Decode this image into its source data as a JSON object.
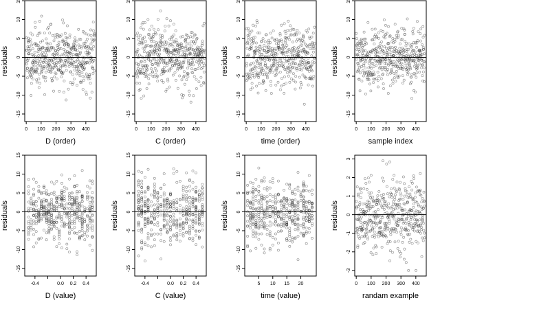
{
  "chart_data": [
    {
      "type": "scatter",
      "xlabel": "D (order)",
      "ylabel": "residuals",
      "xlim": [
        -10,
        470
      ],
      "ylim": [
        -17,
        15
      ],
      "xticks": [
        0,
        100,
        200,
        300,
        400
      ],
      "yticks": [
        -15,
        -10,
        -5,
        0,
        5,
        10,
        15
      ],
      "xtick_labels": [
        "0",
        "100",
        "200",
        "300",
        "400"
      ],
      "ytick_labels": [
        "-15",
        "-10",
        "-5",
        "0",
        "5",
        "10",
        "15"
      ],
      "reference_line": 0,
      "gen": {
        "kind": "index",
        "n": 460,
        "sd": 4.0,
        "seed": 11
      }
    },
    {
      "type": "scatter",
      "xlabel": "C (order)",
      "ylabel": "residuals",
      "xlim": [
        -10,
        470
      ],
      "ylim": [
        -17,
        15
      ],
      "xticks": [
        0,
        100,
        200,
        300,
        400
      ],
      "yticks": [
        -15,
        -10,
        -5,
        0,
        5,
        10,
        15
      ],
      "xtick_labels": [
        "0",
        "100",
        "200",
        "300",
        "400"
      ],
      "ytick_labels": [
        "-15",
        "-10",
        "-5",
        "0",
        "5",
        "10",
        "15"
      ],
      "reference_line": 0,
      "gen": {
        "kind": "index",
        "n": 460,
        "sd": 4.0,
        "seed": 23
      }
    },
    {
      "type": "scatter",
      "xlabel": "time (order)",
      "ylabel": "residuals",
      "xlim": [
        -10,
        470
      ],
      "ylim": [
        -17,
        15
      ],
      "xticks": [
        0,
        100,
        200,
        300,
        400
      ],
      "yticks": [
        -15,
        -10,
        -5,
        0,
        5,
        10,
        15
      ],
      "xtick_labels": [
        "0",
        "100",
        "200",
        "300",
        "400"
      ],
      "ytick_labels": [
        "-15",
        "-10",
        "-5",
        "0",
        "5",
        "10",
        "15"
      ],
      "reference_line": 0,
      "gen": {
        "kind": "index",
        "n": 460,
        "sd": 4.0,
        "seed": 37
      }
    },
    {
      "type": "scatter",
      "xlabel": "sample index",
      "ylabel": "residuals",
      "xlim": [
        -10,
        470
      ],
      "ylim": [
        -17,
        15
      ],
      "xticks": [
        0,
        100,
        200,
        300,
        400
      ],
      "yticks": [
        -15,
        -10,
        -5,
        0,
        5,
        10,
        15
      ],
      "xtick_labels": [
        "0",
        "100",
        "200",
        "300",
        "400"
      ],
      "ytick_labels": [
        "-15",
        "-10",
        "-5",
        "0",
        "5",
        "10",
        "15"
      ],
      "reference_line": 0,
      "gen": {
        "kind": "index",
        "n": 460,
        "sd": 3.8,
        "seed": 41
      }
    },
    {
      "type": "scatter",
      "xlabel": "D (value)",
      "ylabel": "residuals",
      "xlim": [
        -0.56,
        0.56
      ],
      "ylim": [
        -17,
        15
      ],
      "xticks": [
        -0.4,
        -0.2,
        0,
        0.2,
        0.4
      ],
      "yticks": [
        -15,
        -10,
        -5,
        0,
        5,
        10,
        15
      ],
      "xtick_labels": [
        "-0.4",
        "",
        "0.0",
        "0.2",
        "0.4"
      ],
      "ytick_labels": [
        "-15",
        "-10",
        "-5",
        "0",
        "5",
        "10",
        "15"
      ],
      "reference_line": 0,
      "gen": {
        "kind": "value",
        "n": 460,
        "sd": 4.0,
        "seed": 53,
        "min": -0.5,
        "max": 0.5,
        "step": 0.04
      }
    },
    {
      "type": "scatter",
      "xlabel": "C (value)",
      "ylabel": "residuals",
      "xlim": [
        -0.56,
        0.56
      ],
      "ylim": [
        -17,
        15
      ],
      "xticks": [
        -0.4,
        -0.2,
        0,
        0.2,
        0.4
      ],
      "yticks": [
        -15,
        -10,
        -5,
        0,
        5,
        10,
        15
      ],
      "xtick_labels": [
        "-0.4",
        "",
        "0.0",
        "0.2",
        "0.4"
      ],
      "ytick_labels": [
        "-15",
        "-10",
        "-5",
        "0",
        "5",
        "10",
        "15"
      ],
      "reference_line": 0,
      "gen": {
        "kind": "value",
        "n": 460,
        "sd": 4.0,
        "seed": 67,
        "min": -0.5,
        "max": 0.5,
        "step": 0.05
      }
    },
    {
      "type": "scatter",
      "xlabel": "time (value)",
      "ylabel": "residuals",
      "xlim": [
        0,
        25.5
      ],
      "ylim": [
        -17,
        15
      ],
      "xticks": [
        5,
        10,
        15,
        20
      ],
      "yticks": [
        -15,
        -10,
        -5,
        0,
        5,
        10,
        15
      ],
      "xtick_labels": [
        "5",
        "10",
        "15",
        "20"
      ],
      "ytick_labels": [
        "-15",
        "-10",
        "-5",
        "0",
        "5",
        "10",
        "15"
      ],
      "reference_line": 0,
      "gen": {
        "kind": "value",
        "n": 460,
        "sd": 4.0,
        "seed": 71,
        "min": 1,
        "max": 24,
        "step": 1
      }
    },
    {
      "type": "scatter",
      "xlabel": "randam example",
      "ylabel": "residuals",
      "xlim": [
        -10,
        470
      ],
      "ylim": [
        -3.3,
        3.2
      ],
      "xticks": [
        0,
        100,
        200,
        300,
        400
      ],
      "yticks": [
        -3,
        -2,
        -1,
        0,
        1,
        2,
        3
      ],
      "xtick_labels": [
        "0",
        "100",
        "200",
        "300",
        "400"
      ],
      "ytick_labels": [
        "-3",
        "-2",
        "-1",
        "0",
        "1",
        "2",
        "3"
      ],
      "reference_line": 0,
      "gen": {
        "kind": "index",
        "n": 460,
        "sd": 1.0,
        "seed": 89
      }
    }
  ]
}
